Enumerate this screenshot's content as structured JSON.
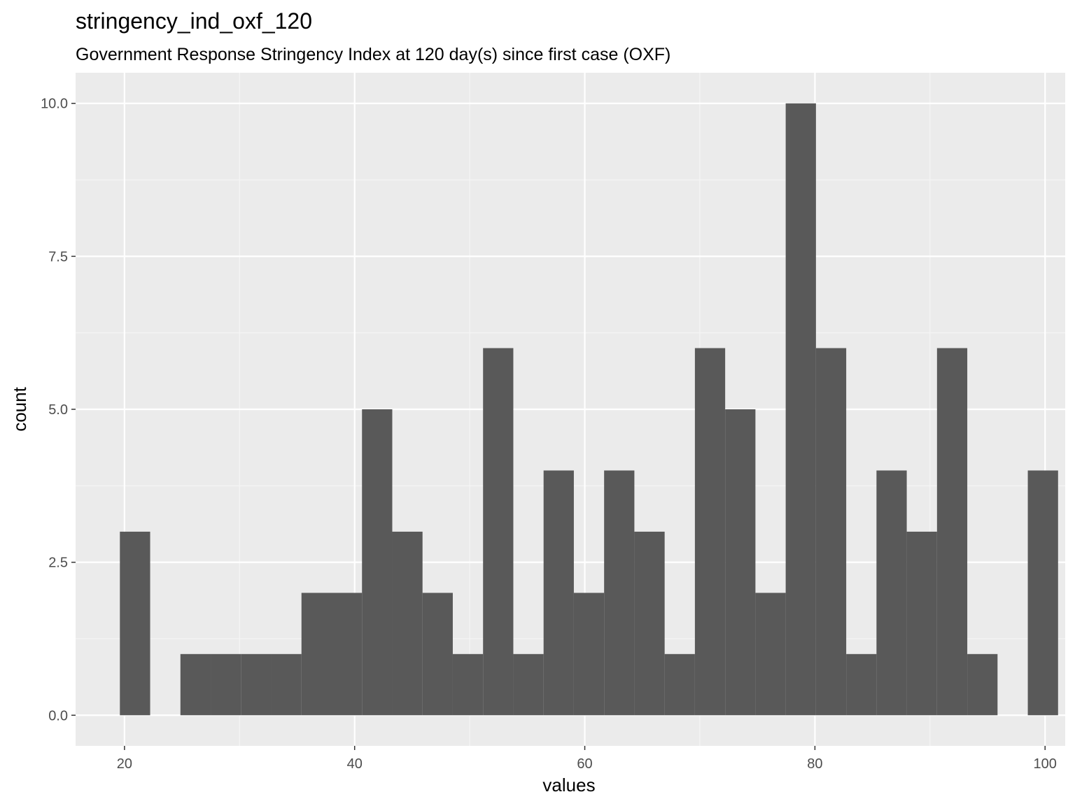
{
  "chart_data": {
    "type": "bar",
    "title": "stringency_ind_oxf_120",
    "subtitle": "Government Response Stringency Index at 120 day(s) since first case (OXF)",
    "xlabel": "values",
    "ylabel": "count",
    "xlim": [
      15.75,
      101.75
    ],
    "ylim": [
      -0.5,
      10.5
    ],
    "x_ticks": [
      20,
      40,
      60,
      80,
      100
    ],
    "x_tick_labels": [
      "20",
      "40",
      "60",
      "80",
      "100"
    ],
    "y_ticks": [
      0,
      2.5,
      5,
      7.5,
      10
    ],
    "y_tick_labels": [
      "0.0",
      "2.5",
      "5.0",
      "7.5",
      "10.0"
    ],
    "grid": true,
    "bin_start": 19.6,
    "bin_width": 2.63,
    "bin_counts": [
      3,
      0,
      1,
      1,
      1,
      1,
      2,
      2,
      5,
      3,
      2,
      1,
      6,
      1,
      4,
      2,
      4,
      3,
      1,
      6,
      5,
      2,
      10,
      6,
      1,
      4,
      3,
      6,
      1,
      0,
      4
    ],
    "colors": {
      "panel_background": "#ebebeb",
      "grid_major": "#ffffff",
      "grid_minor": "#f5f5f5",
      "bar_fill": "#595959",
      "tick_text": "#4d4d4d",
      "tick_mark": "#333333"
    }
  }
}
